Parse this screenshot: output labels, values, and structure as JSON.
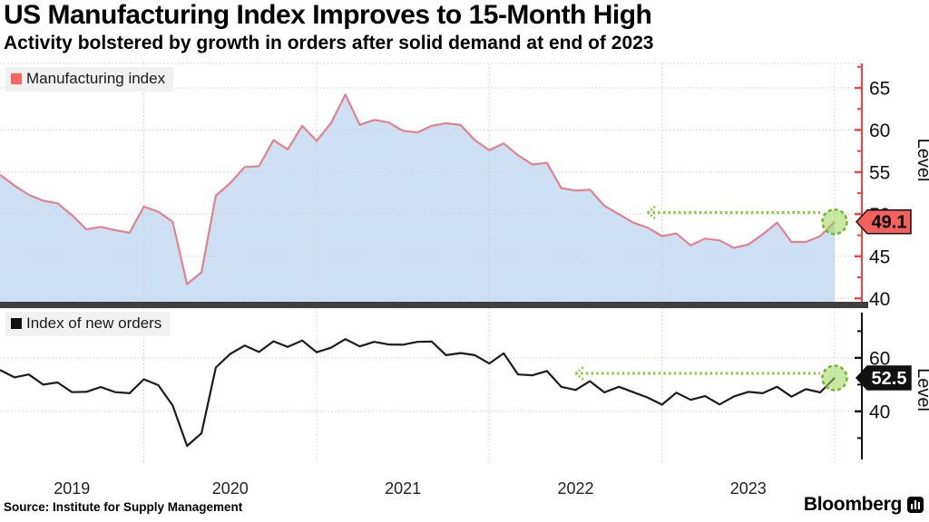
{
  "header": {
    "title": "US Manufacturing Index Improves to 15-Month High",
    "subtitle": "Activity bolstered by growth in orders after solid demand at end of 2023"
  },
  "footer": {
    "source": "Source: Institute for Supply Management",
    "brand": "Bloomberg"
  },
  "colors": {
    "background": "#ffffff",
    "grid": "#cdcdcd",
    "divider": "#3f3f3f",
    "legend_bg": "#f1f1f1",
    "green_line": "#8cc63e",
    "green_stroke": "#76b32c",
    "green_fill": "#9cd55a",
    "red_axis": "#f5413c",
    "red_line": "#e2828f",
    "blue_area": "#cddff2",
    "legend_red": "#fa6660",
    "legend_black": "#111111",
    "badge_red_bg": "#f4615c",
    "badge_black_bg": "#111111"
  },
  "chart_data": [
    {
      "type": "area",
      "data_name": "manufacturing-index",
      "ylabel": "Level",
      "ylim": [
        39.6,
        67.9
      ],
      "grid_levels": [
        40,
        45,
        50,
        55,
        60,
        65
      ],
      "yticks_labeled": [
        40,
        45,
        50,
        55,
        60,
        65
      ],
      "yticks_unlabeled": [
        42.5,
        47.5,
        52.5,
        57.5,
        62.5,
        67.5
      ],
      "axis_color": "#f5413c",
      "badge_bg": "#f4615c",
      "badge_fg": "#000000",
      "last_value_label": "49.1",
      "x_tick_labels": [
        "2019",
        "2020",
        "2021",
        "2022",
        "2023"
      ],
      "annotation": {
        "type": "dotted-arrow-left",
        "level": 50.2,
        "from": "2022-12"
      },
      "x": [
        "2019-03",
        "2019-04",
        "2019-05",
        "2019-06",
        "2019-07",
        "2019-08",
        "2019-09",
        "2019-10",
        "2019-11",
        "2019-12",
        "2020-01",
        "2020-02",
        "2020-03",
        "2020-04",
        "2020-05",
        "2020-06",
        "2020-07",
        "2020-08",
        "2020-09",
        "2020-10",
        "2020-11",
        "2020-12",
        "2021-01",
        "2021-02",
        "2021-03",
        "2021-04",
        "2021-05",
        "2021-06",
        "2021-07",
        "2021-08",
        "2021-09",
        "2021-10",
        "2021-11",
        "2021-12",
        "2022-01",
        "2022-02",
        "2022-03",
        "2022-04",
        "2022-05",
        "2022-06",
        "2022-07",
        "2022-08",
        "2022-09",
        "2022-10",
        "2022-11",
        "2022-12",
        "2023-01",
        "2023-02",
        "2023-03",
        "2023-04",
        "2023-05",
        "2023-06",
        "2023-07",
        "2023-08",
        "2023-09",
        "2023-10",
        "2023-11",
        "2023-12",
        "2024-01"
      ],
      "series": [
        {
          "name": "Manufacturing index",
          "color": "#e2828f",
          "fill": "#cddff2",
          "legend_color": "#fa6660",
          "values": [
            54.7,
            53.4,
            52.3,
            51.6,
            51.3,
            49.9,
            48.2,
            48.5,
            48.1,
            47.8,
            50.9,
            50.3,
            49.1,
            41.7,
            43.1,
            52.2,
            53.7,
            55.6,
            55.7,
            58.8,
            57.7,
            60.5,
            58.7,
            60.8,
            64.2,
            60.6,
            61.2,
            60.9,
            59.9,
            59.7,
            60.5,
            60.8,
            60.6,
            58.8,
            57.6,
            58.4,
            57.0,
            55.9,
            56.1,
            53.1,
            52.8,
            52.9,
            51.0,
            50.0,
            49.0,
            48.4,
            47.4,
            47.7,
            46.3,
            47.1,
            46.9,
            46.0,
            46.4,
            47.6,
            49.0,
            46.7,
            46.7,
            47.4,
            49.1
          ]
        }
      ]
    },
    {
      "type": "line",
      "data_name": "new-orders",
      "ylabel": "Level",
      "ylim": [
        21.0,
        78.6
      ],
      "grid_levels": [
        40,
        60
      ],
      "yticks_labeled": [
        40,
        60
      ],
      "yticks_unlabeled": [
        30,
        50,
        70
      ],
      "axis_color": "#111111",
      "badge_bg": "#111111",
      "badge_fg": "#ffffff",
      "last_value_label": "52.5",
      "x_tick_labels": [
        "2019",
        "2020",
        "2021",
        "2022",
        "2023"
      ],
      "annotation": {
        "type": "dotted-arrow-left",
        "level": 54.2,
        "from": "2022-07"
      },
      "x": [
        "2019-03",
        "2019-04",
        "2019-05",
        "2019-06",
        "2019-07",
        "2019-08",
        "2019-09",
        "2019-10",
        "2019-11",
        "2019-12",
        "2020-01",
        "2020-02",
        "2020-03",
        "2020-04",
        "2020-05",
        "2020-06",
        "2020-07",
        "2020-08",
        "2020-09",
        "2020-10",
        "2020-11",
        "2020-12",
        "2021-01",
        "2021-02",
        "2021-03",
        "2021-04",
        "2021-05",
        "2021-06",
        "2021-07",
        "2021-08",
        "2021-09",
        "2021-10",
        "2021-11",
        "2021-12",
        "2022-01",
        "2022-02",
        "2022-03",
        "2022-04",
        "2022-05",
        "2022-06",
        "2022-07",
        "2022-08",
        "2022-09",
        "2022-10",
        "2022-11",
        "2022-12",
        "2023-01",
        "2023-02",
        "2023-03",
        "2023-04",
        "2023-05",
        "2023-06",
        "2023-07",
        "2023-08",
        "2023-09",
        "2023-10",
        "2023-11",
        "2023-12",
        "2024-01"
      ],
      "series": [
        {
          "name": "Index of new orders",
          "color": "#1c1c1c",
          "legend_color": "#111111",
          "values": [
            55.5,
            52.7,
            53.8,
            50.0,
            50.8,
            47.2,
            47.3,
            49.1,
            47.2,
            46.8,
            52.0,
            49.8,
            42.2,
            27.1,
            31.8,
            56.4,
            61.5,
            64.6,
            62.2,
            66.2,
            64.1,
            66.5,
            62.1,
            63.8,
            67.0,
            64.3,
            66.0,
            65.0,
            64.9,
            66.0,
            66.1,
            61.0,
            61.8,
            61.0,
            57.9,
            61.7,
            53.8,
            53.5,
            55.1,
            49.2,
            48.0,
            51.3,
            47.1,
            49.2,
            47.2,
            45.2,
            42.5,
            47.0,
            44.3,
            45.7,
            42.6,
            45.6,
            47.3,
            46.8,
            49.2,
            45.5,
            48.3,
            47.1,
            52.5
          ]
        }
      ]
    }
  ]
}
